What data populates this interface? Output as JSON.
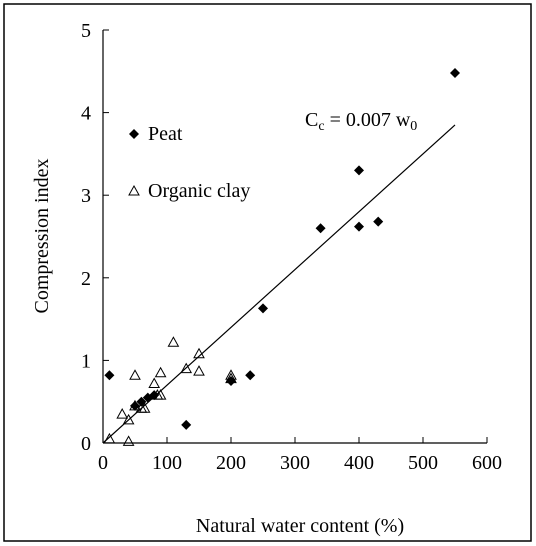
{
  "chart_data": {
    "type": "scatter",
    "xlabel": "Natural water content (%)",
    "ylabel": "Compression index",
    "xlim": [
      0,
      600
    ],
    "xticks": [
      0,
      100,
      200,
      300,
      400,
      500,
      600
    ],
    "ylim": [
      0,
      5
    ],
    "yticks": [
      0,
      1,
      2,
      3,
      4,
      5
    ],
    "legend": "upper left",
    "series": [
      {
        "name": "Peat",
        "marker": "diamond",
        "color": "#000000",
        "x": [
          10,
          50,
          60,
          70,
          80,
          130,
          200,
          230,
          250,
          340,
          400,
          400,
          430,
          550
        ],
        "values": [
          0.82,
          0.45,
          0.5,
          0.55,
          0.58,
          0.22,
          0.75,
          0.82,
          1.63,
          2.6,
          2.62,
          3.3,
          2.68,
          4.48
        ]
      },
      {
        "name": "Organic clay",
        "marker": "triangle",
        "color": "#000000",
        "x": [
          10,
          30,
          40,
          40,
          50,
          50,
          60,
          65,
          80,
          85,
          90,
          90,
          110,
          130,
          150,
          150,
          200,
          200
        ],
        "values": [
          0.05,
          0.35,
          0.28,
          0.02,
          0.82,
          0.45,
          0.42,
          0.42,
          0.72,
          0.58,
          0.85,
          0.58,
          1.22,
          0.9,
          0.87,
          1.08,
          0.82,
          0.78
        ]
      }
    ],
    "fit_line": {
      "x": [
        0,
        550
      ],
      "values": [
        0,
        3.85
      ]
    },
    "annotation": [
      "C",
      "c",
      " = 0.007 w",
      "0"
    ]
  }
}
